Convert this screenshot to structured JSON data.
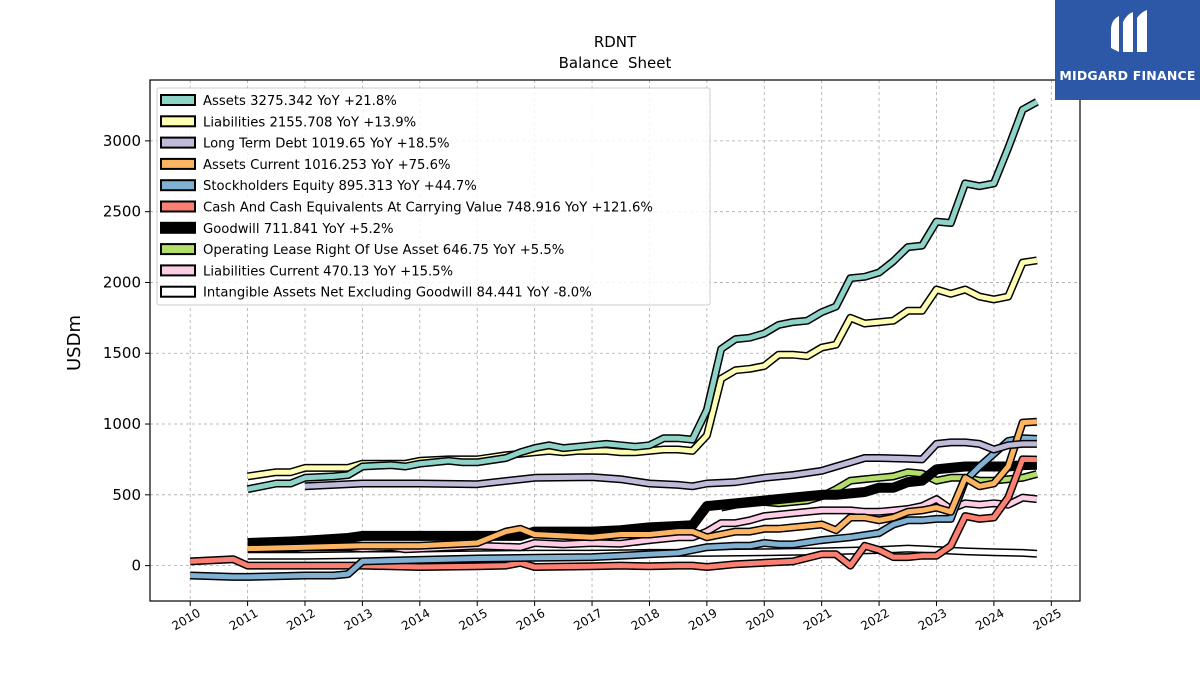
{
  "chart_data": {
    "type": "line",
    "title": "RDNT",
    "subtitle": "Balance  Sheet",
    "xlabel": "",
    "ylabel": "USDm",
    "xlim": [
      2009.3,
      2025.5
    ],
    "ylim": [
      -250,
      3430
    ],
    "x_ticks": [
      "2010",
      "2011",
      "2012",
      "2013",
      "2014",
      "2015",
      "2016",
      "2017",
      "2018",
      "2019",
      "2020",
      "2021",
      "2022",
      "2023",
      "2024",
      "2025"
    ],
    "y_ticks": [
      "0",
      "500",
      "1000",
      "1500",
      "2000",
      "2500",
      "3000"
    ],
    "grid": true,
    "legend_position": "upper-left",
    "series": [
      {
        "name": "Assets  3275.342 YoY +21.8%",
        "color": "#8dd3c7",
        "x": [
          2011,
          2011.5,
          2011.75,
          2012,
          2012.5,
          2012.75,
          2013,
          2013.5,
          2013.75,
          2014,
          2014.5,
          2014.75,
          2015,
          2015.5,
          2015.75,
          2016,
          2016.25,
          2016.5,
          2016.75,
          2017,
          2017.25,
          2017.5,
          2017.75,
          2018,
          2018.25,
          2018.5,
          2018.75,
          2019,
          2019.25,
          2019.5,
          2019.75,
          2020,
          2020.25,
          2020.5,
          2020.75,
          2021,
          2021.25,
          2021.5,
          2021.75,
          2022,
          2022.25,
          2022.5,
          2022.75,
          2023,
          2023.25,
          2023.5,
          2023.75,
          2024,
          2024.25,
          2024.5,
          2024.75
        ],
        "y": [
          540,
          580,
          580,
          620,
          630,
          640,
          700,
          710,
          700,
          720,
          740,
          730,
          730,
          760,
          800,
          830,
          850,
          830,
          840,
          850,
          860,
          850,
          840,
          850,
          900,
          900,
          890,
          1100,
          1530,
          1600,
          1610,
          1640,
          1700,
          1720,
          1730,
          1790,
          1830,
          2030,
          2040,
          2070,
          2150,
          2250,
          2260,
          2430,
          2420,
          2700,
          2680,
          2700,
          2950,
          3220,
          3275
        ]
      },
      {
        "name": "Liabilities  2155.708 YoY +13.9%",
        "color": "#ffffb3",
        "x": [
          2011,
          2011.5,
          2011.75,
          2012,
          2012.5,
          2012.75,
          2013,
          2013.5,
          2013.75,
          2014,
          2014.5,
          2014.75,
          2015,
          2015.5,
          2015.75,
          2016,
          2016.25,
          2016.5,
          2016.75,
          2017,
          2017.25,
          2017.5,
          2017.75,
          2018,
          2018.25,
          2018.5,
          2018.75,
          2019,
          2019.25,
          2019.5,
          2019.75,
          2020,
          2020.25,
          2020.5,
          2020.75,
          2021,
          2021.25,
          2021.5,
          2021.75,
          2022,
          2022.25,
          2022.5,
          2022.75,
          2023,
          2023.25,
          2023.5,
          2023.75,
          2024,
          2024.25,
          2024.5,
          2024.75
        ],
        "y": [
          630,
          660,
          660,
          690,
          690,
          690,
          720,
          720,
          720,
          740,
          750,
          750,
          750,
          780,
          790,
          800,
          810,
          800,
          810,
          810,
          810,
          800,
          800,
          810,
          820,
          820,
          810,
          920,
          1320,
          1380,
          1390,
          1410,
          1490,
          1490,
          1480,
          1540,
          1560,
          1750,
          1710,
          1720,
          1730,
          1800,
          1800,
          1950,
          1920,
          1950,
          1900,
          1880,
          1900,
          2140,
          2156
        ]
      },
      {
        "name": "Long Term Debt  1019.65 YoY +18.5%",
        "color": "#bebada",
        "x": [
          2012,
          2013,
          2014,
          2015,
          2016,
          2017,
          2017.5,
          2018,
          2018.5,
          2018.75,
          2019,
          2019.5,
          2020,
          2020.5,
          2021,
          2021.25,
          2021.5,
          2021.75,
          2022,
          2022.5,
          2022.75,
          2023,
          2023.25,
          2023.5,
          2023.75,
          2024,
          2024.25,
          2024.5,
          2024.75
        ],
        "y": [
          560,
          580,
          580,
          575,
          620,
          625,
          610,
          580,
          570,
          560,
          580,
          590,
          620,
          640,
          670,
          700,
          730,
          760,
          760,
          755,
          750,
          860,
          870,
          870,
          860,
          820,
          850,
          860,
          860
        ]
      },
      {
        "name": "Assets Current  1016.253 YoY +75.6%",
        "color": "#fdb462",
        "x": [
          2011,
          2012,
          2013,
          2014,
          2015,
          2015.5,
          2015.75,
          2016,
          2017,
          2017.5,
          2018,
          2018.5,
          2018.75,
          2019,
          2019.5,
          2019.75,
          2020,
          2020.25,
          2020.5,
          2020.75,
          2021,
          2021.25,
          2021.5,
          2021.75,
          2022,
          2022.25,
          2022.5,
          2022.75,
          2023,
          2023.25,
          2023.5,
          2023.75,
          2024,
          2024.25,
          2024.5,
          2024.75
        ],
        "y": [
          120,
          130,
          140,
          140,
          160,
          240,
          260,
          220,
          200,
          220,
          220,
          240,
          240,
          200,
          240,
          240,
          260,
          260,
          270,
          280,
          290,
          250,
          340,
          340,
          320,
          340,
          380,
          390,
          410,
          380,
          620,
          560,
          580,
          700,
          1010,
          1016
        ]
      },
      {
        "name": "Stockholders Equity  895.313 YoY +44.7%",
        "color": "#80b1d3",
        "x": [
          2010,
          2010.75,
          2011,
          2011.5,
          2012,
          2012.5,
          2012.75,
          2013,
          2014,
          2015,
          2016,
          2017,
          2017.5,
          2018,
          2018.5,
          2018.75,
          2019,
          2019.5,
          2019.75,
          2020,
          2020.25,
          2020.5,
          2021,
          2021.5,
          2022,
          2022.25,
          2022.5,
          2022.75,
          2023,
          2023.25,
          2023.5,
          2023.75,
          2024,
          2024.25,
          2024.5,
          2024.75
        ],
        "y": [
          -70,
          -80,
          -80,
          -75,
          -70,
          -70,
          -60,
          30,
          40,
          50,
          55,
          60,
          70,
          80,
          90,
          110,
          130,
          140,
          140,
          160,
          150,
          150,
          180,
          200,
          230,
          290,
          320,
          320,
          330,
          330,
          600,
          700,
          790,
          880,
          900,
          895
        ]
      },
      {
        "name": "Cash And Cash Equivalents At Carrying Value  748.916 YoY +121.6%",
        "color": "#fb8072",
        "x": [
          2010,
          2010.75,
          2011,
          2012,
          2013,
          2014,
          2015,
          2015.5,
          2015.75,
          2016,
          2017,
          2017.5,
          2018,
          2018.5,
          2018.75,
          2019,
          2019.25,
          2019.5,
          2020,
          2020.5,
          2021,
          2021.25,
          2021.5,
          2021.75,
          2022,
          2022.25,
          2022.5,
          2022.75,
          2023,
          2023.25,
          2023.5,
          2023.75,
          2024,
          2024.25,
          2024.5,
          2024.75
        ],
        "y": [
          30,
          45,
          0,
          0,
          0,
          -10,
          -5,
          0,
          20,
          -10,
          -5,
          0,
          -5,
          0,
          0,
          -10,
          0,
          10,
          20,
          30,
          80,
          80,
          0,
          140,
          110,
          60,
          60,
          70,
          70,
          140,
          350,
          330,
          340,
          480,
          750,
          749
        ]
      },
      {
        "name": "Goodwill  711.841 YoY +5.2%",
        "color": "#000000",
        "x": [
          2011,
          2011.75,
          2012,
          2012.75,
          2013,
          2014,
          2015,
          2015.75,
          2016,
          2017,
          2017.5,
          2018,
          2018.5,
          2018.75,
          2019,
          2019.5,
          2020,
          2020.5,
          2021,
          2021.25,
          2021.5,
          2021.75,
          2022,
          2022.25,
          2022.5,
          2022.75,
          2023,
          2023.25,
          2023.5,
          2023.75,
          2024,
          2024.25,
          2024.5,
          2024.75
        ],
        "y": [
          160,
          170,
          175,
          195,
          210,
          210,
          210,
          210,
          240,
          240,
          250,
          270,
          280,
          285,
          420,
          440,
          460,
          480,
          500,
          500,
          510,
          520,
          550,
          550,
          590,
          600,
          680,
          690,
          700,
          700,
          700,
          700,
          710,
          712
        ]
      },
      {
        "name": "Operating Lease Right Of Use Asset  646.75 YoY +5.5%",
        "color": "#b3de69",
        "x": [
          2019.25,
          2019.5,
          2019.75,
          2020,
          2020.25,
          2020.5,
          2020.75,
          2021,
          2021.25,
          2021.5,
          2021.75,
          2022,
          2022.25,
          2022.5,
          2022.75,
          2023,
          2023.25,
          2023.5,
          2023.75,
          2024,
          2024.25,
          2024.5,
          2024.75
        ],
        "y": [
          410,
          430,
          440,
          450,
          440,
          450,
          460,
          490,
          540,
          600,
          610,
          620,
          630,
          660,
          650,
          600,
          620,
          620,
          600,
          600,
          610,
          620,
          647
        ]
      },
      {
        "name": "Liabilities Current  470.13 YoY +15.5%",
        "color": "#fccde5",
        "x": [
          2011,
          2011.75,
          2012,
          2012.75,
          2013,
          2013.5,
          2013.75,
          2014,
          2015,
          2015.75,
          2016,
          2016.5,
          2017,
          2017.5,
          2018,
          2018.5,
          2018.75,
          2019,
          2019.25,
          2019.5,
          2019.75,
          2020,
          2020.5,
          2021,
          2021.5,
          2021.75,
          2022,
          2022.5,
          2022.75,
          2023,
          2023.25,
          2023.5,
          2023.75,
          2024,
          2024.25,
          2024.5,
          2024.75
        ],
        "y": [
          120,
          120,
          130,
          130,
          120,
          130,
          115,
          120,
          140,
          130,
          160,
          150,
          160,
          155,
          180,
          200,
          200,
          240,
          300,
          300,
          320,
          350,
          370,
          390,
          390,
          380,
          380,
          400,
          420,
          470,
          400,
          440,
          430,
          440,
          430,
          480,
          470
        ]
      },
      {
        "name": "Intangible Assets Net Excluding Goodwill  84.441 YoY -8.0%",
        "color": "#ffffff",
        "x": [
          2011,
          2012,
          2013,
          2014,
          2015,
          2016,
          2017,
          2018,
          2019,
          2020,
          2021,
          2022,
          2022.5,
          2022.75,
          2023,
          2023.5,
          2024,
          2024.5,
          2024.75
        ],
        "y": [
          70,
          70,
          75,
          75,
          80,
          85,
          85,
          90,
          90,
          95,
          100,
          110,
          120,
          115,
          110,
          100,
          95,
          90,
          84
        ]
      }
    ]
  },
  "branding": {
    "name": "MIDGARD FINANCE"
  }
}
